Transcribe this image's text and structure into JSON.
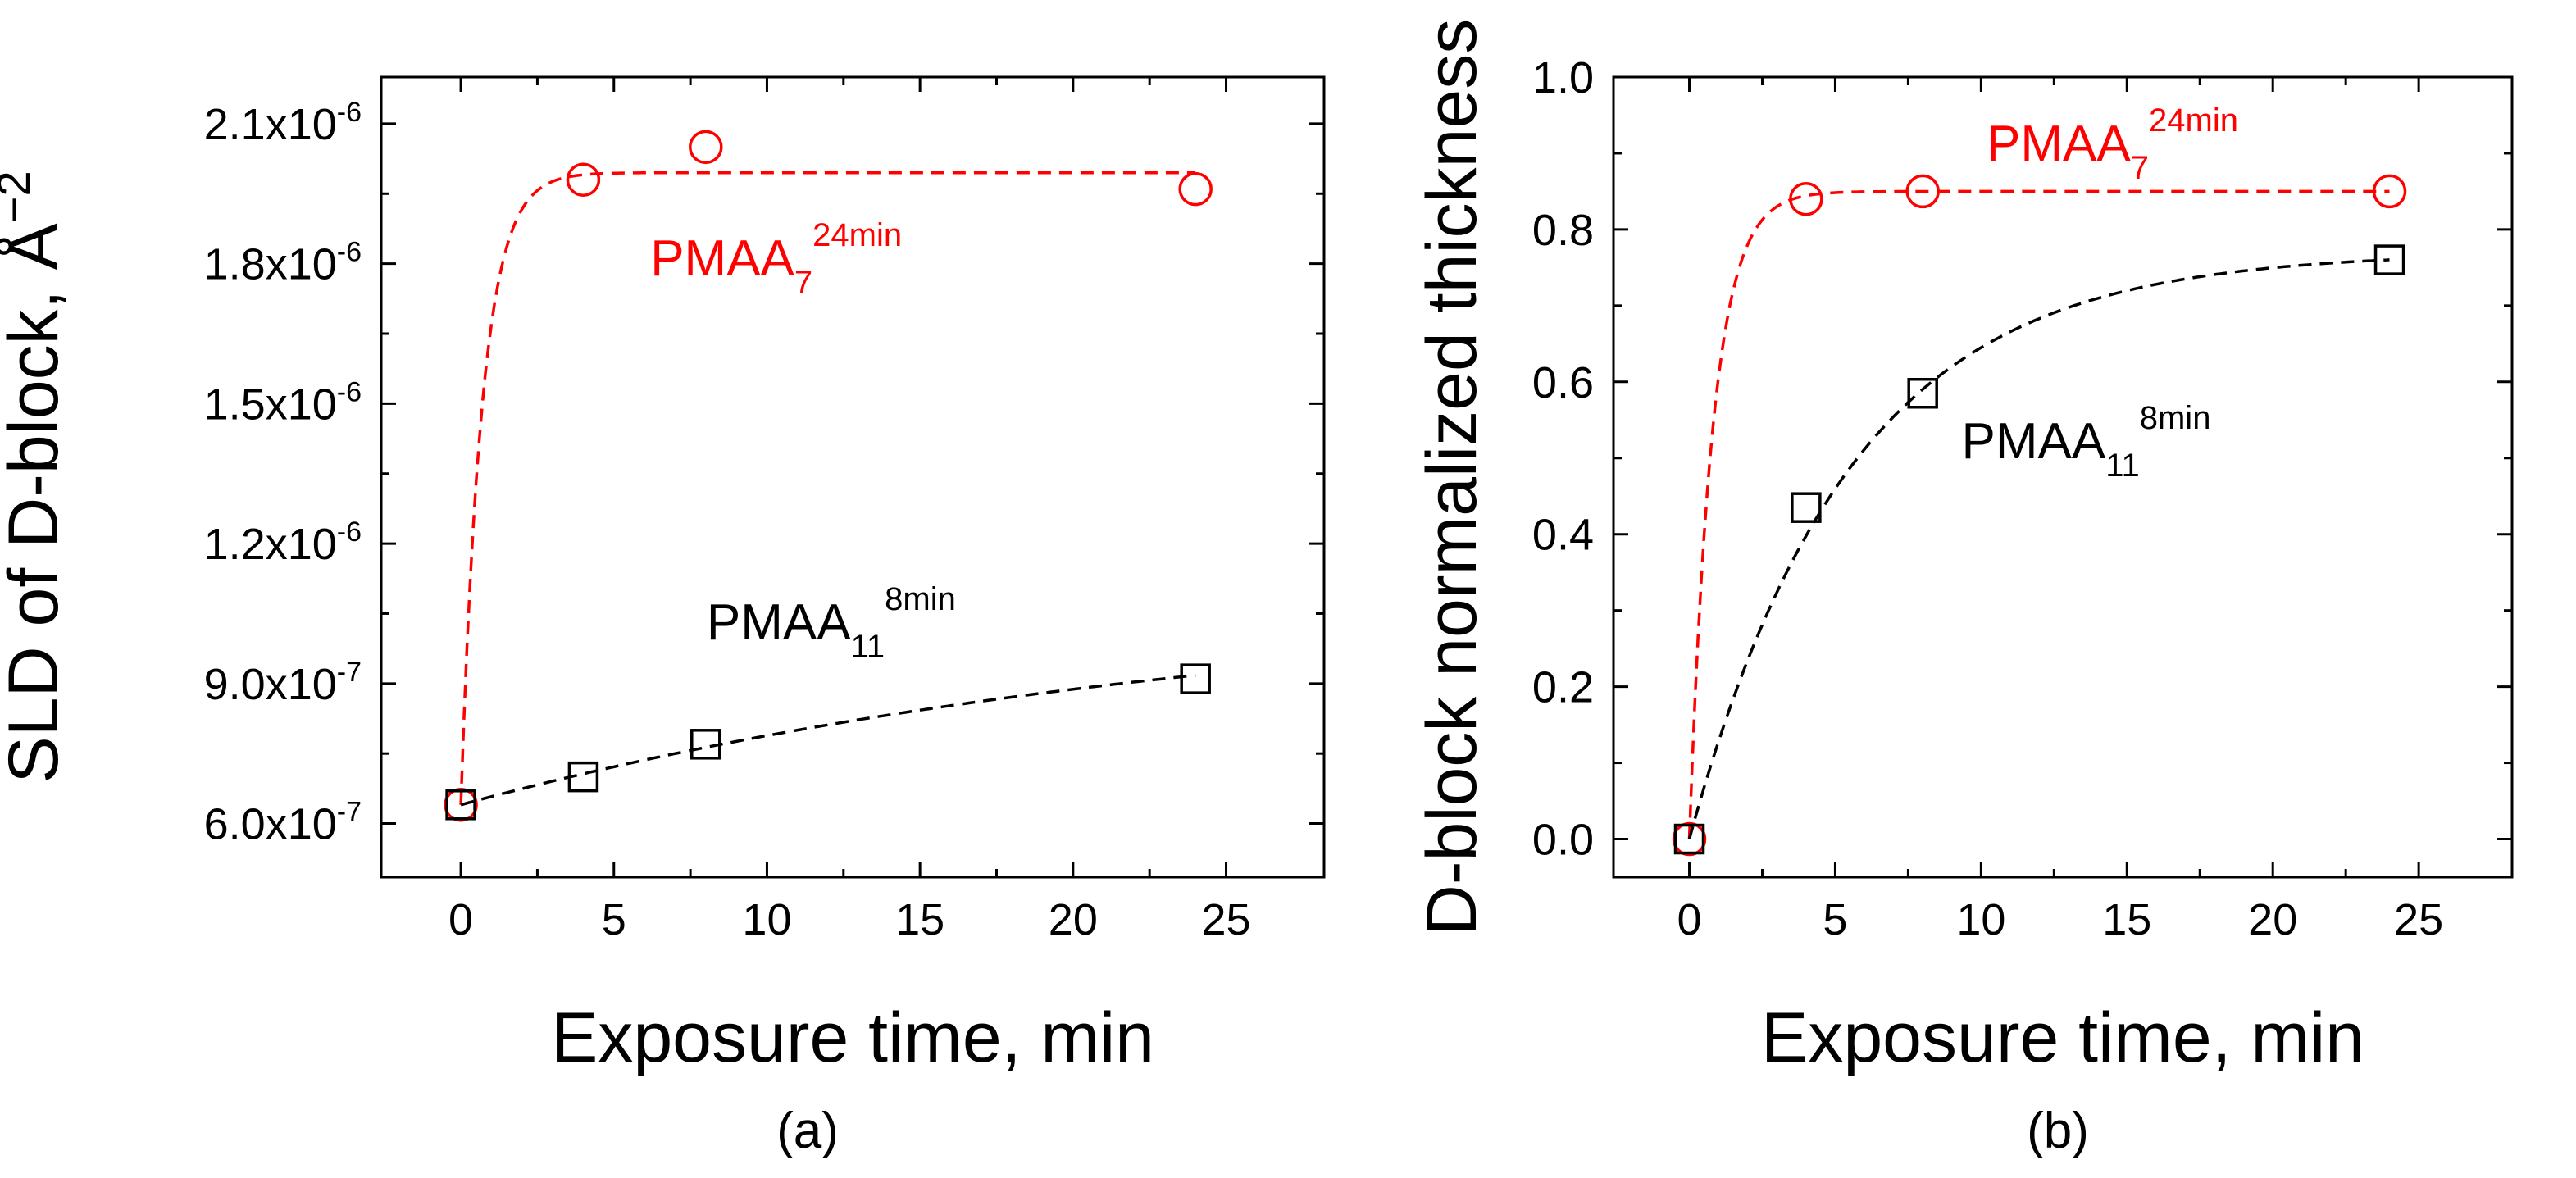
{
  "colors": {
    "red_series": "#ff0000",
    "black_series": "#000000"
  },
  "chart_data": [
    {
      "type": "scatter",
      "panel_label": "(a)",
      "xlabel": "Exposure time, min",
      "ylabel": "SLD of D-block, Å",
      "ylabel_exponent": "−2",
      "xlim": [
        -2.6,
        28.2
      ],
      "ylim": [
        4.85e-07,
        2.2e-06
      ],
      "x_ticks": [
        0,
        5,
        10,
        15,
        20,
        25
      ],
      "x_tick_labels": [
        "0",
        "5",
        "10",
        "15",
        "20",
        "25"
      ],
      "y_ticks": [
        6e-07,
        9e-07,
        1.2e-06,
        1.5e-06,
        1.8e-06,
        2.1e-06
      ],
      "y_tick_labels": [
        {
          "base": "6.0x10",
          "exp": "-7"
        },
        {
          "base": "9.0x10",
          "exp": "-7"
        },
        {
          "base": "1.2x10",
          "exp": "-6"
        },
        {
          "base": "1.5x10",
          "exp": "-6"
        },
        {
          "base": "1.8x10",
          "exp": "-6"
        },
        {
          "base": "2.1x10",
          "exp": "-6"
        }
      ],
      "grid": false,
      "series": [
        {
          "name": "PMAA",
          "name_sub": "7",
          "name_sup": "24min",
          "marker": "circle",
          "color": "#ff0000",
          "x": [
            0,
            4,
            8,
            24
          ],
          "y": [
            6.4e-07,
            1.98e-06,
            2.05e-06,
            1.96e-06
          ],
          "fit": {
            "model": "exp_rise",
            "y0": 6.4e-07,
            "a": 1.355e-06,
            "tau": 0.7
          },
          "label_anchor": [
            10.3,
            1.775e-06
          ]
        },
        {
          "name": "PMAA",
          "name_sub": "11",
          "name_sup": "8min",
          "marker": "square",
          "color": "#000000",
          "x": [
            0,
            4,
            8,
            24
          ],
          "y": [
            6.4e-07,
            7e-07,
            7.7e-07,
            9.1e-07
          ],
          "fit": {
            "model": "exp_rise",
            "y0": 6.4e-07,
            "a": 4.5e-07,
            "tau": 25
          },
          "label_anchor": [
            12.1,
            9.95e-07
          ]
        }
      ]
    },
    {
      "type": "scatter",
      "panel_label": "(b)",
      "xlabel": "Exposure time, min",
      "ylabel": "D-block normalized thickness",
      "xlim": [
        -2.6,
        28.2
      ],
      "ylim": [
        -0.05,
        1.0
      ],
      "x_ticks": [
        0,
        5,
        10,
        15,
        20,
        25
      ],
      "x_tick_labels": [
        "0",
        "5",
        "10",
        "15",
        "20",
        "25"
      ],
      "y_ticks": [
        0.0,
        0.2,
        0.4,
        0.6,
        0.8,
        1.0
      ],
      "y_tick_labels": [
        "0.0",
        "0.2",
        "0.4",
        "0.6",
        "0.8",
        "1.0"
      ],
      "grid": false,
      "series": [
        {
          "name": "PMAA",
          "name_sub": "7",
          "name_sup": "24min",
          "marker": "circle",
          "color": "#ff0000",
          "x": [
            0,
            4,
            8,
            24
          ],
          "y": [
            0.0,
            0.84,
            0.85,
            0.85
          ],
          "fit": {
            "model": "exp_rise",
            "y0": 0,
            "a": 0.85,
            "tau": 0.8
          },
          "label_anchor": [
            14.5,
            0.89
          ]
        },
        {
          "name": "PMAA",
          "name_sub": "11",
          "name_sup": "8min",
          "marker": "square",
          "color": "#000000",
          "x": [
            0,
            4,
            8,
            24
          ],
          "y": [
            0.0,
            0.435,
            0.585,
            0.76
          ],
          "fit": {
            "model": "exp_rise",
            "y0": 0,
            "a": 0.77,
            "tau": 5.5
          },
          "label_anchor": [
            13.6,
            0.5
          ]
        }
      ]
    }
  ]
}
